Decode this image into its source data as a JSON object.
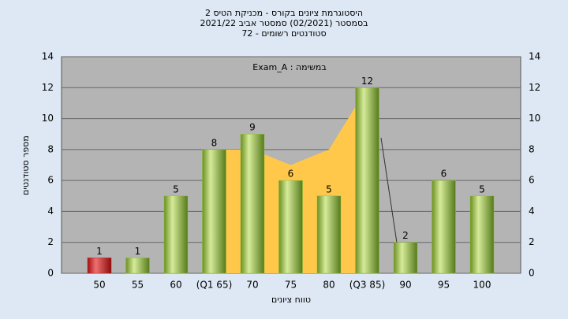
{
  "chart_data": {
    "type": "bar",
    "title_lines": [
      "היסטוגרמת ציונים בקורס - מכניקת הטיס 2",
      "בסמסטר  (02/2021)  סמסטר אביב 2021/22",
      "סטודנטים רשומים - 72"
    ],
    "annotation": "במשימה : Exam_A",
    "x_label": "טווח ציונים",
    "y_label": "מספר סטודנטים",
    "categories": [
      "50",
      "55",
      "60",
      "(Q1 65)",
      "70",
      "75",
      "80",
      "(Q3 85)",
      "90",
      "95",
      "100"
    ],
    "values": [
      1,
      1,
      5,
      8,
      9,
      6,
      5,
      12,
      2,
      6,
      5
    ],
    "colors": [
      "#d42020",
      "#8fbf3a",
      "#8fbf3a",
      "#8fbf3a",
      "#8fbf3a",
      "#8fbf3a",
      "#8fbf3a",
      "#8fbf3a",
      "#8fbf3a",
      "#8fbf3a",
      "#8fbf3a"
    ],
    "area": {
      "color": "#ffc84a",
      "values": [
        null,
        null,
        null,
        8,
        8,
        7,
        8,
        12,
        null,
        null,
        null
      ]
    },
    "ylim": [
      0,
      14
    ],
    "yticks": [
      0,
      2,
      4,
      6,
      8,
      10,
      12,
      14
    ],
    "grid": true
  }
}
